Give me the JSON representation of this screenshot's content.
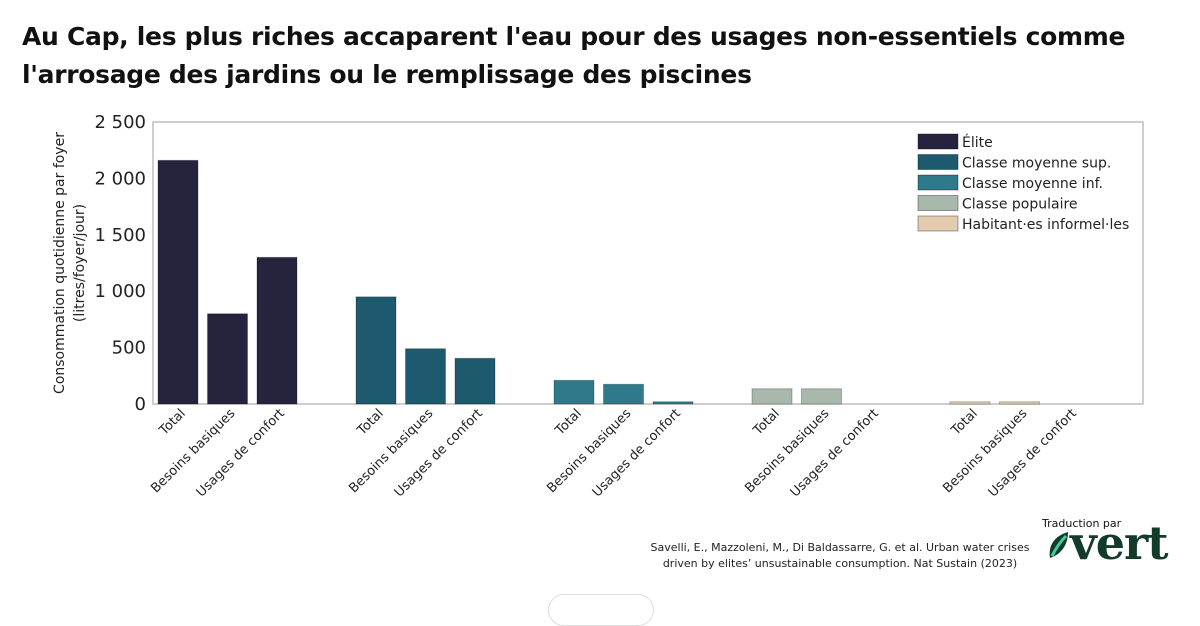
{
  "title": "Au Cap, les plus riches accaparent l'eau pour des usages non-essentiels comme l'arrosage des jardins ou le remplissage des piscines",
  "source": {
    "line1": "Savelli, E., Mazzoleni, M., Di Baldassarre, G. et al. Urban water crises",
    "line2": "driven by elites’ unsustainable consumption. Nat Sustain (2023)"
  },
  "credit": {
    "label": "Traduction par",
    "logo_text": "vert",
    "logo_icon": "leaf-icon"
  },
  "chart_data": {
    "type": "bar",
    "title": "Au Cap, les plus riches accaparent l'eau pour des usages non-essentiels comme l'arrosage des jardins ou le remplissage des piscines",
    "ylabel_line1": "Consommation quotidienne par foyer",
    "ylabel_line2": "(litres/foyer/jour)",
    "xlabel": "",
    "ylim": [
      0,
      2500
    ],
    "yticks": [
      0,
      500,
      1000,
      1500,
      2000,
      2500
    ],
    "ytick_labels": [
      "0",
      "500",
      "1 000",
      "1 500",
      "2 000",
      "2 500"
    ],
    "categories": [
      "Total",
      "Besoins basiques",
      "Usages de confort"
    ],
    "grid": false,
    "legend_position": "top-right",
    "series": [
      {
        "name": "Élite",
        "color": "#26233f",
        "values": [
          2160,
          800,
          1300
        ]
      },
      {
        "name": "Classe moyenne sup.",
        "color": "#1d5a6e",
        "values": [
          950,
          490,
          405
        ]
      },
      {
        "name": "Classe moyenne inf.",
        "color": "#2f7a8a",
        "values": [
          210,
          175,
          20
        ]
      },
      {
        "name": "Classe populaire",
        "color": "#a8b8ac",
        "values": [
          135,
          135,
          0
        ]
      },
      {
        "name": "Habitant·es informel·les",
        "color": "#e3cbb0",
        "values": [
          20,
          20,
          0
        ]
      }
    ]
  }
}
